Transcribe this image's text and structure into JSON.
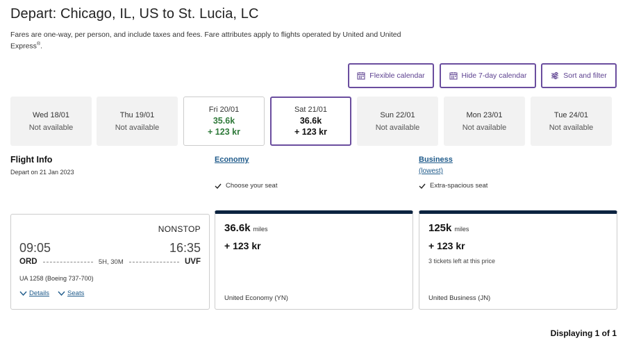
{
  "header": {
    "title": "Depart: Chicago, IL, US to St. Lucia, LC",
    "note": "Fares are one-way, per person, and include taxes and fees. Fare attributes apply to flights operated by United and United Express",
    "note_mark": "®",
    "note_end": "."
  },
  "toolbar": {
    "flexible_calendar": "Flexible calendar",
    "hide_calendar": "Hide 7-day calendar",
    "sort_filter": "Sort and filter"
  },
  "calendar": {
    "days": [
      {
        "date": "Wed 18/01",
        "status": "Not available"
      },
      {
        "date": "Thu 19/01",
        "status": "Not available"
      },
      {
        "date": "Fri 20/01",
        "miles": "35.6k",
        "price": "+ 123 kr"
      },
      {
        "date": "Sat 21/01",
        "miles": "36.6k",
        "price": "+ 123 kr"
      },
      {
        "date": "Sun 22/01",
        "status": "Not available"
      },
      {
        "date": "Mon 23/01",
        "status": "Not available"
      },
      {
        "date": "Tue 24/01",
        "status": "Not available"
      }
    ]
  },
  "flight_info": {
    "title": "Flight Info",
    "depart_date": "Depart on 21 Jan 2023"
  },
  "cabins": {
    "economy": {
      "title": "Economy",
      "feature": "Choose your seat"
    },
    "business": {
      "title": "Business",
      "qualifier": "(lowest)",
      "feature": "Extra-spacious seat"
    }
  },
  "flight": {
    "stops": "NONSTOP",
    "depart_time": "09:05",
    "arrive_time": "16:35",
    "origin": "ORD",
    "destination": "UVF",
    "duration": "5H, 30M",
    "flight_number": "UA 1258 (Boeing 737-700)",
    "details_label": "Details",
    "seats_label": "Seats"
  },
  "fares": {
    "economy": {
      "miles": "36.6k",
      "miles_unit": "miles",
      "price": "+ 123 kr",
      "cabin": "United Economy (YN)"
    },
    "business": {
      "miles": "125k",
      "miles_unit": "miles",
      "price": "+ 123 kr",
      "availability": "3 tickets left at this price",
      "cabin": "United Business (JN)"
    }
  },
  "footer": {
    "displaying": "Displaying 1 of 1"
  },
  "colors": {
    "accent_purple": "#6a4d9e",
    "available_green": "#2f7a3a",
    "link_blue": "#1e5a8a",
    "fare_top_bar": "#0c2340"
  }
}
